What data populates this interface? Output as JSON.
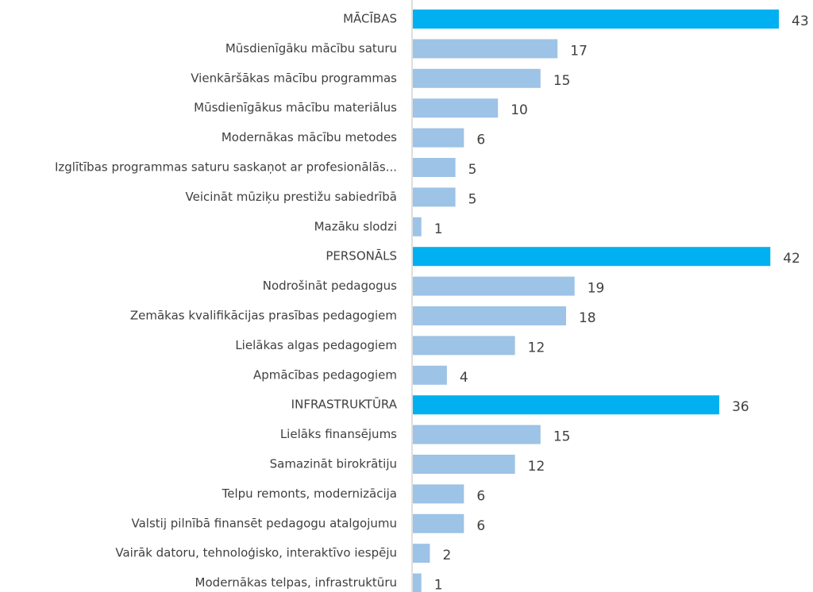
{
  "chart_data": {
    "type": "barh",
    "categories": [
      "MĀCĪBAS",
      "Mūsdienīgāku mācību saturu",
      "Vienkāršākas mācību programmas",
      "Mūsdienīgākus mācību materiālus",
      "Modernākas mācību metodes",
      "Izglītības programmas saturu saskaņot ar profesionālās...",
      "Veicināt mūziķu prestižu sabiedrībā",
      "Mazāku slodzi",
      "PERSONĀLS",
      "Nodrošināt pedagogus",
      "Zemākas kvalifikācijas prasības pedagogiem",
      "Lielākas algas pedagogiem",
      "Apmācības pedagogiem",
      "INFRASTRUKTŪRA",
      "Lielāks finansējums",
      "Samazināt birokrātiju",
      "Telpu remonts, modernizācija",
      "Valstij pilnībā finansēt pedagogu atalgojumu",
      "Vairāk datoru, tehnoloģisko, interaktīvo iespēju",
      "Modernākas telpas, infrastruktūru"
    ],
    "values": [
      43,
      17,
      15,
      10,
      6,
      5,
      5,
      1,
      42,
      19,
      18,
      12,
      4,
      36,
      15,
      12,
      6,
      6,
      2,
      1
    ],
    "colors": [
      "#00b0f0",
      "#9dc3e6",
      "#9dc3e6",
      "#9dc3e6",
      "#9dc3e6",
      "#9dc3e6",
      "#9dc3e6",
      "#9dc3e6",
      "#00b0f0",
      "#9dc3e6",
      "#9dc3e6",
      "#9dc3e6",
      "#9dc3e6",
      "#00b0f0",
      "#9dc3e6",
      "#9dc3e6",
      "#9dc3e6",
      "#9dc3e6",
      "#9dc3e6",
      "#9dc3e6"
    ],
    "xlim": [
      0,
      43
    ]
  }
}
